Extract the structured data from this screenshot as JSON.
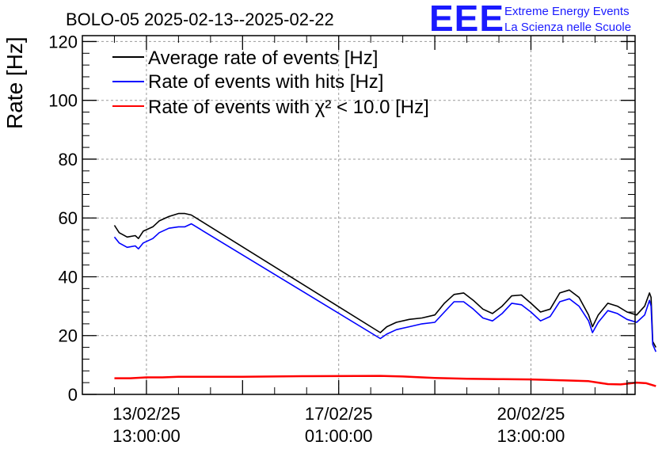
{
  "chart_data": {
    "type": "line",
    "title": "BOLO-05 2025-02-13--2025-02-22",
    "xlabel": "",
    "ylabel": "Rate [Hz]",
    "ylim": [
      0,
      122
    ],
    "yticks": [
      0,
      20,
      40,
      60,
      80,
      100,
      120
    ],
    "xlim": [
      -2.0,
      15.25
    ],
    "xticks": [
      {
        "value": 0,
        "line1": "13/02/25",
        "line2": "13:00:00"
      },
      {
        "value": 6,
        "line1": "17/02/25",
        "line2": "01:00:00"
      },
      {
        "value": 12,
        "line1": "20/02/25",
        "line2": "13:00:00"
      }
    ],
    "x_unit": "days since 13/02/25 13:00:00",
    "grid": true,
    "legend_position": "top-left",
    "series": [
      {
        "name": "Average rate of events [Hz]",
        "color": "#000000",
        "points": [
          [
            -1.0,
            57.5
          ],
          [
            -0.85,
            55
          ],
          [
            -0.6,
            53.5
          ],
          [
            -0.35,
            54
          ],
          [
            -0.25,
            53
          ],
          [
            -0.1,
            55.5
          ],
          [
            0.2,
            57
          ],
          [
            0.4,
            59
          ],
          [
            0.7,
            60.5
          ],
          [
            1.0,
            61.5
          ],
          [
            1.2,
            61.5
          ],
          [
            1.4,
            61
          ],
          [
            7.3,
            21
          ],
          [
            7.5,
            23
          ],
          [
            7.8,
            24.5
          ],
          [
            8.2,
            25.5
          ],
          [
            8.6,
            26
          ],
          [
            9.0,
            27
          ],
          [
            9.3,
            31
          ],
          [
            9.6,
            34
          ],
          [
            9.9,
            34.5
          ],
          [
            10.2,
            32
          ],
          [
            10.5,
            29
          ],
          [
            10.8,
            27.5
          ],
          [
            11.1,
            30
          ],
          [
            11.4,
            33.5
          ],
          [
            11.7,
            33.8
          ],
          [
            12.0,
            31
          ],
          [
            12.3,
            28
          ],
          [
            12.6,
            29
          ],
          [
            12.9,
            34.5
          ],
          [
            13.2,
            35.5
          ],
          [
            13.5,
            33
          ],
          [
            13.8,
            27
          ],
          [
            13.92,
            23
          ],
          [
            14.1,
            27
          ],
          [
            14.4,
            31
          ],
          [
            14.7,
            30
          ],
          [
            15.0,
            28
          ],
          [
            15.3,
            27
          ],
          [
            15.55,
            30
          ],
          [
            15.7,
            34.5
          ],
          [
            15.75,
            33
          ],
          [
            15.8,
            18
          ],
          [
            15.9,
            16
          ]
        ]
      },
      {
        "name": "Rate of events with hits [Hz]",
        "color": "#0000ff",
        "points": [
          [
            -1.0,
            53.5
          ],
          [
            -0.85,
            51.5
          ],
          [
            -0.6,
            50
          ],
          [
            -0.35,
            50.5
          ],
          [
            -0.25,
            49.5
          ],
          [
            -0.1,
            51.5
          ],
          [
            0.2,
            53
          ],
          [
            0.4,
            55
          ],
          [
            0.7,
            56.5
          ],
          [
            1.0,
            57
          ],
          [
            1.2,
            57
          ],
          [
            1.4,
            58
          ],
          [
            7.3,
            19
          ],
          [
            7.5,
            20.5
          ],
          [
            7.8,
            22
          ],
          [
            8.2,
            23
          ],
          [
            8.6,
            24
          ],
          [
            9.0,
            24.5
          ],
          [
            9.3,
            28
          ],
          [
            9.6,
            31.5
          ],
          [
            9.9,
            31.5
          ],
          [
            10.2,
            29
          ],
          [
            10.5,
            26
          ],
          [
            10.8,
            25
          ],
          [
            11.1,
            27.5
          ],
          [
            11.4,
            31
          ],
          [
            11.7,
            30.5
          ],
          [
            12.0,
            28
          ],
          [
            12.3,
            25
          ],
          [
            12.6,
            26.5
          ],
          [
            12.9,
            31.5
          ],
          [
            13.2,
            32.5
          ],
          [
            13.5,
            30
          ],
          [
            13.8,
            25
          ],
          [
            13.92,
            21
          ],
          [
            14.1,
            24.5
          ],
          [
            14.4,
            28.5
          ],
          [
            14.7,
            27.5
          ],
          [
            15.0,
            25.5
          ],
          [
            15.3,
            24.5
          ],
          [
            15.55,
            27
          ],
          [
            15.7,
            32
          ],
          [
            15.75,
            30
          ],
          [
            15.8,
            17
          ],
          [
            15.9,
            14.5
          ]
        ]
      },
      {
        "name": "Rate of events with χ² < 10.0 [Hz]",
        "color": "#ff0000",
        "points": [
          [
            -1.0,
            5.5
          ],
          [
            -0.5,
            5.5
          ],
          [
            0,
            5.8
          ],
          [
            0.5,
            5.8
          ],
          [
            1.0,
            6
          ],
          [
            1.4,
            6
          ],
          [
            3.0,
            6
          ],
          [
            5.0,
            6.2
          ],
          [
            7.3,
            6.3
          ],
          [
            8.0,
            6.1
          ],
          [
            9.0,
            5.6
          ],
          [
            10.0,
            5.3
          ],
          [
            11.0,
            5.2
          ],
          [
            12.0,
            5.1
          ],
          [
            13.0,
            4.8
          ],
          [
            13.8,
            4.5
          ],
          [
            14.4,
            3.5
          ],
          [
            14.8,
            3.4
          ],
          [
            15.3,
            4
          ],
          [
            15.6,
            3.8
          ],
          [
            15.9,
            2.8
          ]
        ]
      }
    ]
  },
  "legend": {
    "items": [
      {
        "label": "Average rate of events [Hz]",
        "color": "#000000"
      },
      {
        "label": "Rate of events with hits [Hz]",
        "color": "#0000ff"
      },
      {
        "label": "Rate of events with χ² < 10.0 [Hz]",
        "color": "#ff0000"
      }
    ]
  },
  "logo": {
    "mark": "EEE",
    "line1": "Extreme Energy Events",
    "line2": "La Scienza nelle Scuole",
    "color": "#1a1aff"
  }
}
